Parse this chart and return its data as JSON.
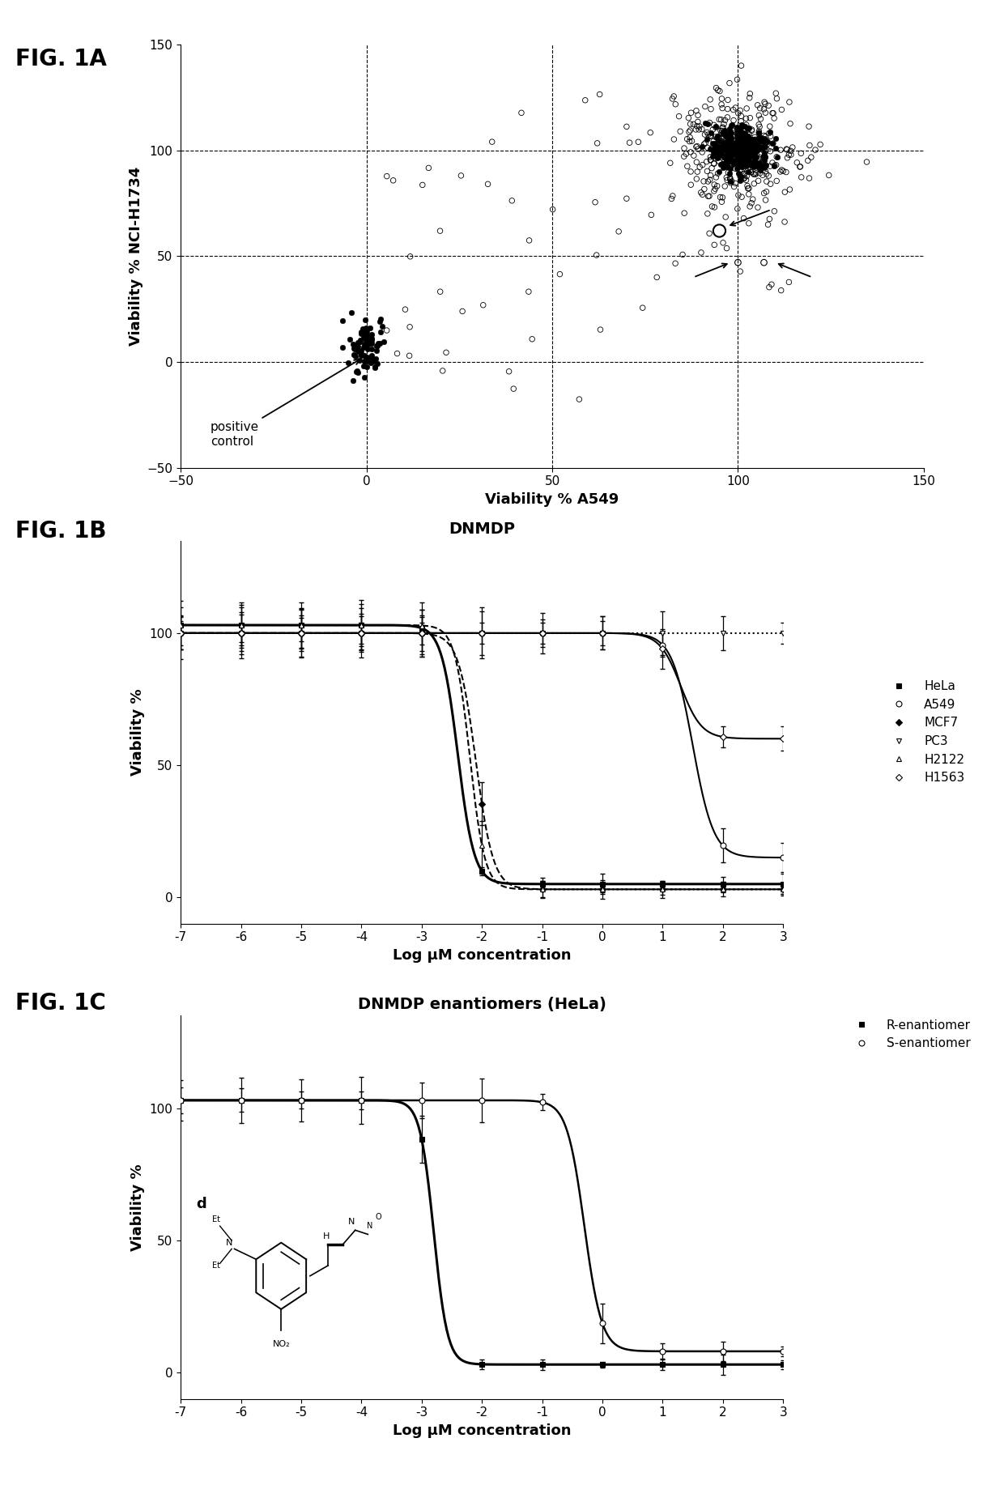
{
  "fig1a": {
    "xlabel": "Viability % A549",
    "ylabel": "Viability % NCI-H1734",
    "xlim": [
      -50,
      150
    ],
    "ylim": [
      -50,
      150
    ],
    "xticks": [
      -50,
      0,
      50,
      100,
      150
    ],
    "yticks": [
      -50,
      0,
      50,
      100,
      150
    ]
  },
  "fig1b": {
    "title": "DNMDP",
    "xlabel": "Log μM concentration",
    "ylabel": "Viability %",
    "xlim": [
      -7,
      3
    ],
    "ylim": [
      -10,
      135
    ],
    "xticks": [
      -7,
      -6,
      -5,
      -4,
      -3,
      -2,
      -1,
      0,
      1,
      2,
      3
    ],
    "xtick_labels": [
      "-7",
      "-6",
      "-5",
      "-4",
      "-3",
      "-2",
      "-1",
      "0",
      "1",
      "2",
      "3"
    ],
    "yticks": [
      0,
      50,
      100
    ],
    "series": [
      {
        "label": "HeLa",
        "ls": "-",
        "marker": "s",
        "ms": 5,
        "lw": 2.2,
        "mfc": "black",
        "ec50": -2.4,
        "hill": 3.2,
        "top": 103,
        "bottom": 5
      },
      {
        "label": "A549",
        "ls": "-",
        "marker": "o",
        "ms": 5,
        "lw": 1.5,
        "mfc": "white",
        "ec50": 1.5,
        "hill": 2.5,
        "top": 100,
        "bottom": 15
      },
      {
        "label": "MCF7",
        "ls": "--",
        "marker": "D",
        "ms": 4,
        "lw": 1.5,
        "mfc": "black",
        "ec50": -2.1,
        "hill": 3.0,
        "top": 100,
        "bottom": 3
      },
      {
        "label": "PC3",
        "ls": ":",
        "marker": "v",
        "ms": 5,
        "lw": 1.5,
        "mfc": "white",
        "ec50": 20,
        "hill": 2.0,
        "top": 100,
        "bottom": 97
      },
      {
        "label": "H2122",
        "ls": "--",
        "marker": "^",
        "ms": 4,
        "lw": 1.5,
        "mfc": "white",
        "ec50": -2.2,
        "hill": 3.5,
        "top": 103,
        "bottom": 3
      },
      {
        "label": "H1563",
        "ls": "-",
        "marker": "D",
        "ms": 4,
        "lw": 1.5,
        "mfc": "white",
        "ec50": 1.3,
        "hill": 2.5,
        "top": 100,
        "bottom": 60
      }
    ]
  },
  "fig1c": {
    "title": "DNMDP enantiomers (HeLa)",
    "xlabel": "Log μM concentration",
    "ylabel": "Viability %",
    "xlim": [
      -7,
      3
    ],
    "ylim": [
      -10,
      135
    ],
    "xticks": [
      -7,
      -6,
      -5,
      -4,
      -3,
      -2,
      -1,
      0,
      1,
      2,
      3
    ],
    "xtick_labels": [
      "-7",
      "-6",
      "-5",
      "-4",
      "-3",
      "-2",
      "-1",
      "0",
      "1",
      "2",
      "3"
    ],
    "yticks": [
      0,
      50,
      100
    ],
    "series": [
      {
        "label": "R-enantiomer",
        "ls": "-",
        "marker": "s",
        "ms": 5,
        "lw": 2.2,
        "mfc": "black",
        "ec50": -2.8,
        "hill": 3.8,
        "top": 103,
        "bottom": 3
      },
      {
        "label": "S-enantiomer",
        "ls": "-",
        "marker": "o",
        "ms": 5,
        "lw": 1.8,
        "mfc": "white",
        "ec50": -0.3,
        "hill": 3.0,
        "top": 103,
        "bottom": 8
      }
    ]
  }
}
